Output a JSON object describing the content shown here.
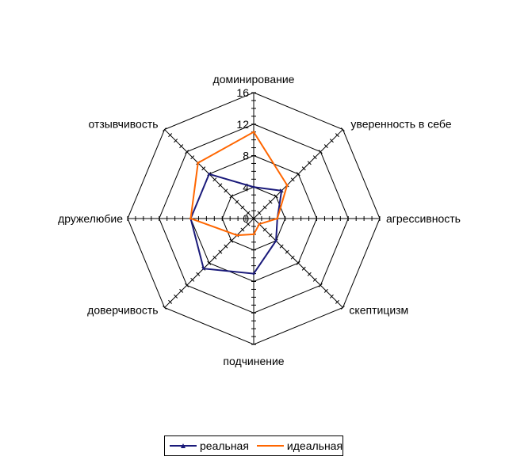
{
  "chart_data": {
    "type": "radar",
    "axes": [
      "доминирование",
      "уверенность в себе",
      "агрессивность",
      "скептицизм",
      "подчинение",
      "доверчивость",
      "дружелюбие",
      "отзывчивость"
    ],
    "tick_labels": [
      "0",
      "4",
      "8",
      "12",
      "16"
    ],
    "ticks": [
      0,
      4,
      8,
      12,
      16
    ],
    "range": [
      0,
      16
    ],
    "grid": true,
    "legend_position": "bottom",
    "series": [
      {
        "name": "реальная",
        "color": "#1a1a7a",
        "values": [
          4,
          5,
          3,
          4,
          7,
          9,
          8,
          8
        ]
      },
      {
        "name": "идеальная",
        "color": "#ff6600",
        "values": [
          11,
          6,
          3,
          1,
          2,
          3,
          8,
          10
        ]
      }
    ]
  }
}
